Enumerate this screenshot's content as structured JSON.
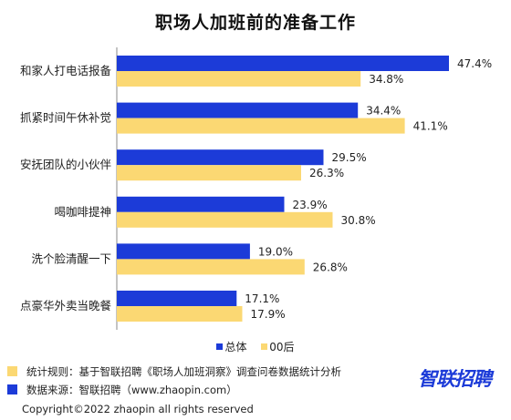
{
  "chart_data": {
    "type": "bar",
    "orientation": "horizontal",
    "title": "职场人加班前的准备工作",
    "categories": [
      "和家人打电话报备",
      "抓紧时间午休补觉",
      "安抚团队的小伙伴",
      "喝咖啡提神",
      "洗个脸清醒一下",
      "点豪华外卖当晚餐"
    ],
    "series": [
      {
        "name": "总体",
        "values": [
          47.4,
          34.4,
          29.5,
          23.9,
          19.0,
          17.1
        ],
        "labels": [
          "47.4%",
          "34.4%",
          "29.5%",
          "23.9%",
          "19.0%",
          "17.1%"
        ],
        "color": "#1c3bd8"
      },
      {
        "name": "00后",
        "values": [
          34.8,
          41.1,
          26.3,
          30.8,
          26.8,
          17.9
        ],
        "labels": [
          "34.8%",
          "41.1%",
          "26.3%",
          "30.8%",
          "26.8%",
          "17.9%"
        ],
        "color": "#fbd873"
      }
    ],
    "xlim": [
      0,
      50
    ],
    "grid": false,
    "legend_position": "bottom"
  },
  "footer": {
    "note": "统计规则：基于智联招聘《职场人加班洞察》调查问卷数据统计分析",
    "note_color": "#fbd873",
    "source": "数据来源：智联招聘（www.zhaopin.com）",
    "source_color": "#1c3bd8",
    "copyright": "Copyright©2022 zhaopin all rights reserved",
    "logo_text": "智联招聘"
  }
}
